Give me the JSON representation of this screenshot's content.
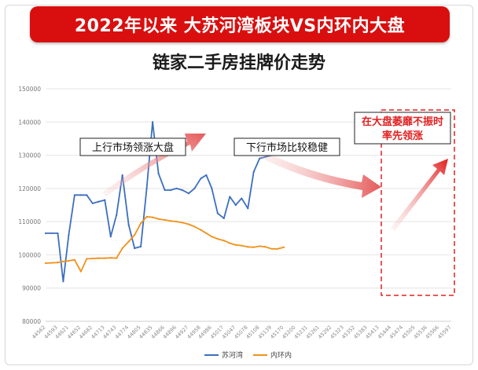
{
  "header": {
    "banner_title": "2022年以来 大苏河湾板块VS内环内大盘",
    "subtitle": "链家二手房挂牌价走势"
  },
  "annotations": {
    "up_market": "上行市场领涨大盘",
    "down_market": "下行市场比较稳健",
    "highlight_line1": "在大盘萎靡不振时",
    "highlight_line2": "率先领涨"
  },
  "colors": {
    "banner": "#d90f0f",
    "series_blue": "#3c6fbf",
    "series_orange": "#f0921c",
    "highlight_red": "#e02020"
  },
  "chart_data": {
    "type": "line",
    "x": [
      "44562",
      "44593",
      "44621",
      "44652",
      "44682",
      "44713",
      "44743",
      "44774",
      "44805",
      "44835",
      "44866",
      "44896",
      "44927",
      "44958",
      "44986",
      "45017",
      "45047",
      "45078",
      "45108",
      "45139",
      "45170",
      "45200",
      "45231",
      "45261",
      "45292",
      "45323",
      "45352",
      "45383",
      "45413",
      "45444",
      "45474",
      "45505",
      "45536",
      "45566",
      "45597"
    ],
    "x_tick_labels": [
      "44562",
      "44593",
      "44621",
      "44652",
      "44682",
      "44713",
      "44743",
      "44774",
      "44805",
      "44835",
      "44866",
      "44896",
      "44927",
      "44958",
      "44986",
      "45017",
      "45047",
      "45078",
      "45108",
      "45139",
      "45170",
      "45200",
      "45231",
      "45261",
      "45292",
      "45323",
      "45352",
      "45383",
      "45413",
      "45444",
      "45474",
      "45505",
      "45536",
      "45566",
      "45597"
    ],
    "ylim": [
      80000,
      150000
    ],
    "y_ticks": [
      80000,
      90000,
      100000,
      110000,
      120000,
      130000,
      140000,
      150000
    ],
    "grid": true,
    "legend_position": "bottom",
    "series": [
      {
        "name": "苏河湾",
        "color": "#3c6fbf",
        "points": [
          [
            "44562",
            106500
          ],
          [
            "44577",
            106500
          ],
          [
            "44593",
            106500
          ],
          [
            "44607",
            92000
          ],
          [
            "44621",
            106000
          ],
          [
            "44636",
            118000
          ],
          [
            "44652",
            118000
          ],
          [
            "44667",
            118000
          ],
          [
            "44682",
            115500
          ],
          [
            "44697",
            116000
          ],
          [
            "44713",
            116500
          ],
          [
            "44728",
            105500
          ],
          [
            "44743",
            112000
          ],
          [
            "44758",
            124000
          ],
          [
            "44774",
            109000
          ],
          [
            "44789",
            102000
          ],
          [
            "44805",
            102500
          ],
          [
            "44820",
            120000
          ],
          [
            "44835",
            140000
          ],
          [
            "44850",
            124500
          ],
          [
            "44866",
            119500
          ],
          [
            "44881",
            119500
          ],
          [
            "44896",
            120000
          ],
          [
            "44911",
            119500
          ],
          [
            "44927",
            118500
          ],
          [
            "44942",
            120000
          ],
          [
            "44958",
            123000
          ],
          [
            "44972",
            124000
          ],
          [
            "44986",
            120000
          ],
          [
            "45001",
            112500
          ],
          [
            "45017",
            111000
          ],
          [
            "45032",
            117500
          ],
          [
            "45047",
            115000
          ],
          [
            "45062",
            117000
          ],
          [
            "45078",
            114000
          ],
          [
            "45093",
            125000
          ],
          [
            "45108",
            129000
          ],
          [
            "45123",
            129500
          ],
          [
            "45139",
            130000
          ],
          [
            "45154",
            130000
          ],
          [
            "45170",
            130000
          ]
        ]
      },
      {
        "name": "内环内",
        "color": "#f0921c",
        "points": [
          [
            "44562",
            97500
          ],
          [
            "44577",
            97600
          ],
          [
            "44593",
            97700
          ],
          [
            "44607",
            98000
          ],
          [
            "44621",
            98200
          ],
          [
            "44636",
            98500
          ],
          [
            "44652",
            95000
          ],
          [
            "44667",
            98800
          ],
          [
            "44682",
            98900
          ],
          [
            "44697",
            99000
          ],
          [
            "44713",
            99000
          ],
          [
            "44728",
            99100
          ],
          [
            "44743",
            99000
          ],
          [
            "44758",
            102000
          ],
          [
            "44774",
            104000
          ],
          [
            "44789",
            106000
          ],
          [
            "44805",
            109500
          ],
          [
            "44820",
            111500
          ],
          [
            "44835",
            111300
          ],
          [
            "44850",
            110800
          ],
          [
            "44866",
            110500
          ],
          [
            "44881",
            110200
          ],
          [
            "44896",
            110000
          ],
          [
            "44911",
            109700
          ],
          [
            "44927",
            109200
          ],
          [
            "44942",
            108500
          ],
          [
            "44958",
            107500
          ],
          [
            "44972",
            106500
          ],
          [
            "44986",
            105500
          ],
          [
            "45001",
            104800
          ],
          [
            "45017",
            104300
          ],
          [
            "45032",
            103500
          ],
          [
            "45047",
            103000
          ],
          [
            "45062",
            102800
          ],
          [
            "45078",
            102400
          ],
          [
            "45093",
            102300
          ],
          [
            "45108",
            102600
          ],
          [
            "45123",
            102400
          ],
          [
            "45139",
            101800
          ],
          [
            "45154",
            101800
          ],
          [
            "45170",
            102300
          ]
        ]
      }
    ]
  }
}
